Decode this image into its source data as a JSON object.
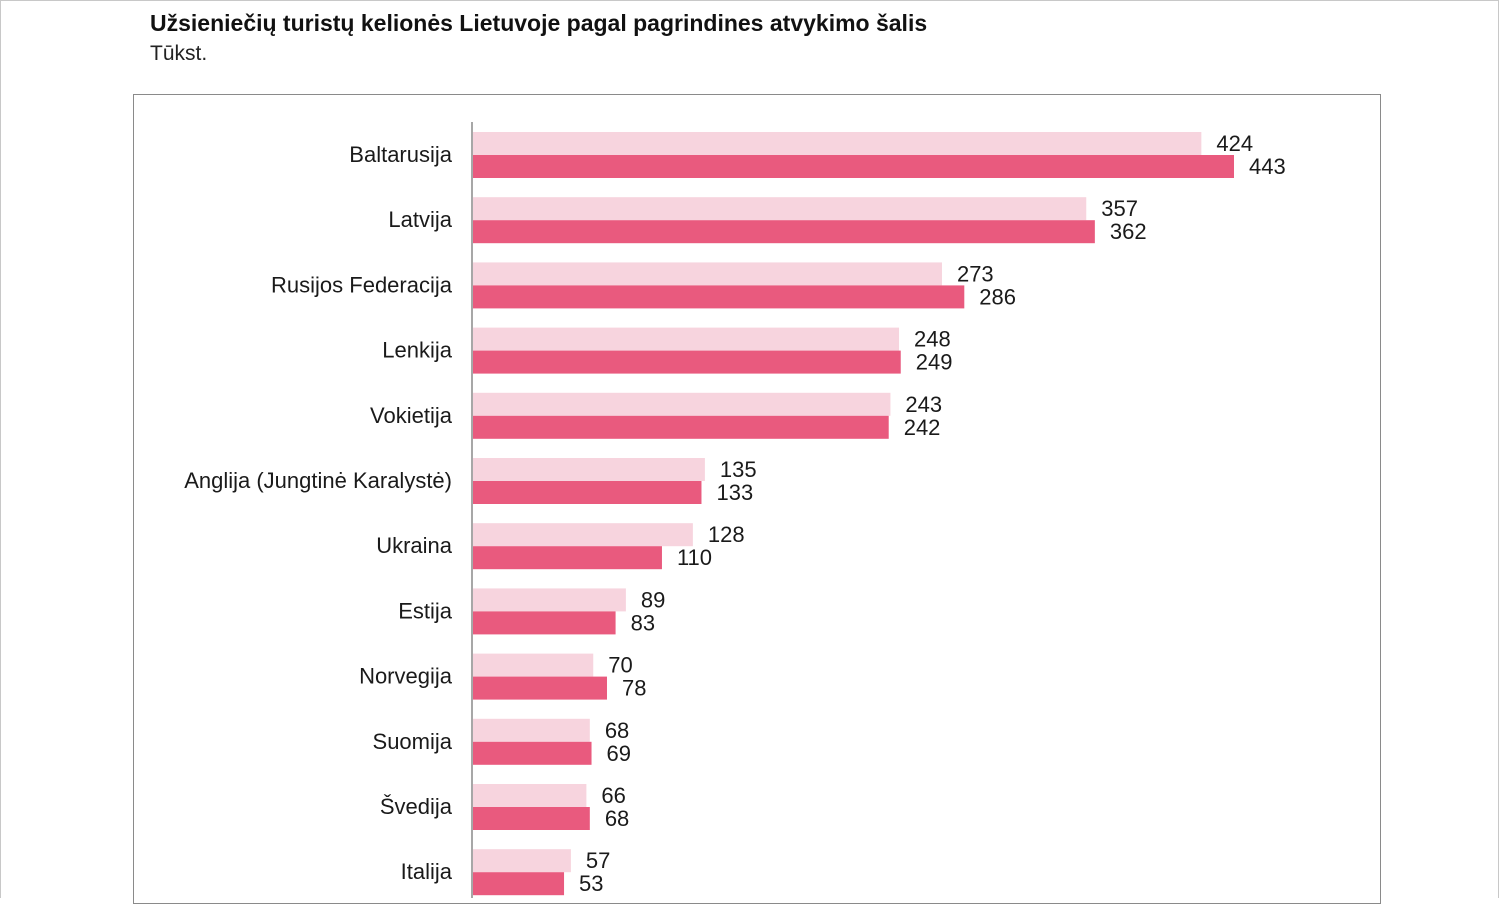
{
  "chart_data": {
    "type": "bar",
    "orientation": "horizontal",
    "title": "Užsieniečių turistų kelionės Lietuvoje pagal pagrindines atvykimo šalis",
    "subtitle": "Tūkst.",
    "categories": [
      "Baltarusija",
      "Latvija",
      "Rusijos Federacija",
      "Lenkija",
      "Vokietija",
      "Anglija (Jungtinė Karalystė)",
      "Ukraina",
      "Estija",
      "Norvegija",
      "Suomija",
      "Švedija",
      "Italija"
    ],
    "series": [
      {
        "color": "#f7d4de",
        "values": [
          424,
          357,
          273,
          248,
          243,
          135,
          128,
          89,
          70,
          68,
          66,
          57
        ]
      },
      {
        "color": "#e95a7e",
        "values": [
          443,
          362,
          286,
          249,
          242,
          133,
          110,
          83,
          78,
          69,
          68,
          53
        ]
      }
    ],
    "xlim": [
      0,
      443
    ],
    "grid": false,
    "legend": "none",
    "data_labels": true
  }
}
